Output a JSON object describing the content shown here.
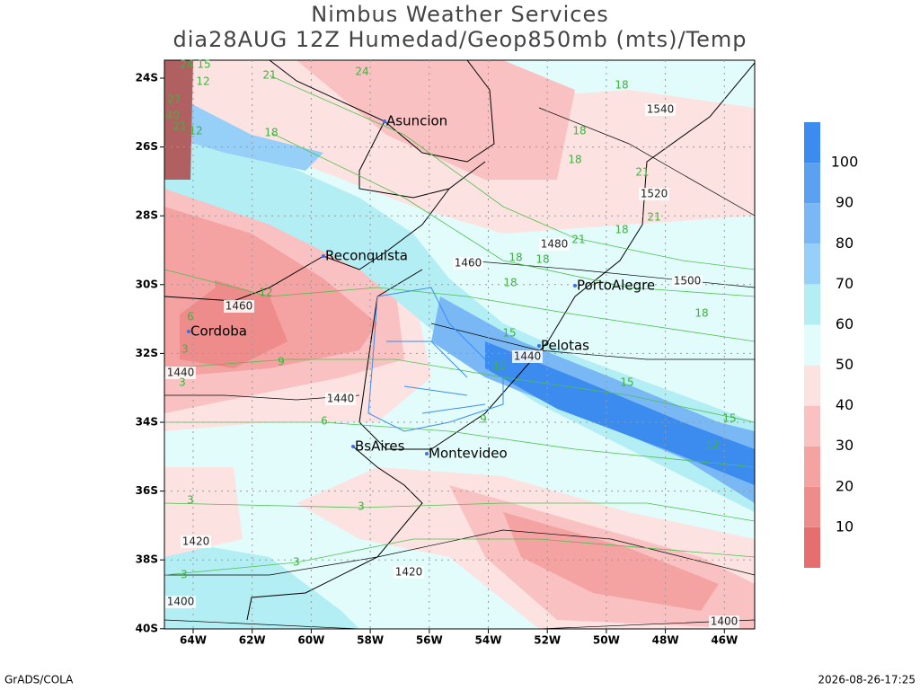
{
  "header": {
    "title": "Nimbus Weather Services",
    "subtitle": "dia28AUG 12Z Humedad/Geop850mb (mts)/Temp"
  },
  "map": {
    "lat_labels": [
      "24S",
      "26S",
      "28S",
      "30S",
      "32S",
      "34S",
      "36S",
      "38S",
      "40S"
    ],
    "lon_labels": [
      "64W",
      "62W",
      "60W",
      "58W",
      "56W",
      "54W",
      "52W",
      "50W",
      "48W",
      "46W"
    ],
    "cities": [
      "Asuncion",
      "Reconquista",
      "PortoAlegre",
      "Cordoba",
      "Pelotas",
      "BsAires",
      "Montevideo"
    ],
    "geopotential_labels": [
      "1540",
      "1520",
      "1480",
      "1460",
      "1500",
      "1460",
      "1440",
      "1440",
      "1440",
      "1420",
      "1420",
      "1400",
      "1400"
    ],
    "temperature_labels": [
      "24",
      "15",
      "21",
      "24",
      "12",
      "27",
      "40",
      "21",
      "12",
      "18",
      "18",
      "18",
      "18",
      "21",
      "21",
      "18",
      "21",
      "18",
      "18",
      "18",
      "18",
      "12",
      "6",
      "3",
      "9",
      "3",
      "15",
      "12",
      "15",
      "15",
      "12",
      "6",
      "9",
      "3",
      "3",
      "3",
      "3"
    ]
  },
  "colorbar": {
    "labels": [
      10,
      20,
      30,
      40,
      50,
      60,
      70,
      80,
      90,
      100
    ],
    "colors": [
      "#e66e6e",
      "#ee8c8c",
      "#f4a2a2",
      "#f9c1c1",
      "#fde2e2",
      "#e2fcfc",
      "#b2eef4",
      "#96d0f8",
      "#79b8f4",
      "#5ca0f0",
      "#3c8cf0"
    ]
  },
  "footer": {
    "left": "GrADS/COLA",
    "right": "2026-08-26-17:25"
  }
}
